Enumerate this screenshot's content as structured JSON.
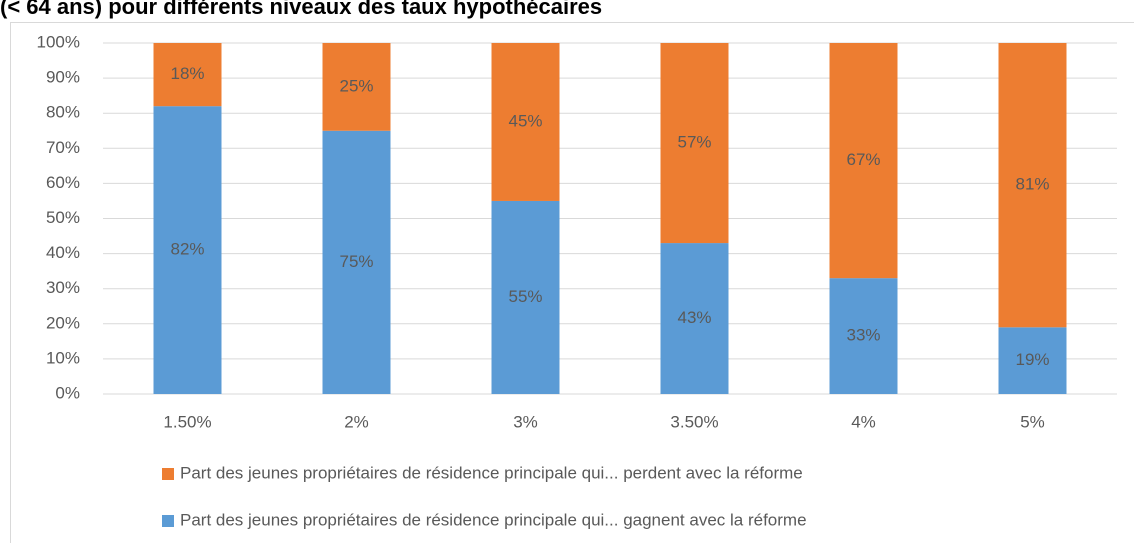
{
  "chart_data": {
    "type": "stacked_bar",
    "title": "(< 64 ans) pour différents niveaux des taux hypothécaires",
    "categories": [
      "1.50%",
      "2%",
      "3%",
      "3.50%",
      "4%",
      "5%"
    ],
    "series": [
      {
        "name": "Part des jeunes propriétaires de résidence principale qui... gagnent avec la réforme",
        "color": "#5b9bd5",
        "values": [
          82,
          75,
          55,
          43,
          33,
          19
        ],
        "value_labels": [
          "82%",
          "75%",
          "55%",
          "43%",
          "33%",
          "19%"
        ]
      },
      {
        "name": "Part des jeunes propriétaires de résidence principale qui... perdent avec la réforme",
        "color": "#ed7d31",
        "values": [
          18,
          25,
          45,
          57,
          67,
          81
        ],
        "value_labels": [
          "18%",
          "25%",
          "45%",
          "57%",
          "67%",
          "81%"
        ]
      }
    ],
    "ylim": [
      0,
      100
    ],
    "yticks": [
      {
        "value": 0,
        "label": "0%"
      },
      {
        "value": 10,
        "label": "10%"
      },
      {
        "value": 20,
        "label": "20%"
      },
      {
        "value": 30,
        "label": "30%"
      },
      {
        "value": 40,
        "label": "40%"
      },
      {
        "value": 50,
        "label": "50%"
      },
      {
        "value": 60,
        "label": "60%"
      },
      {
        "value": 70,
        "label": "70%"
      },
      {
        "value": 80,
        "label": "80%"
      },
      {
        "value": 90,
        "label": "90%"
      },
      {
        "value": 100,
        "label": "100%"
      }
    ],
    "grid": true
  }
}
